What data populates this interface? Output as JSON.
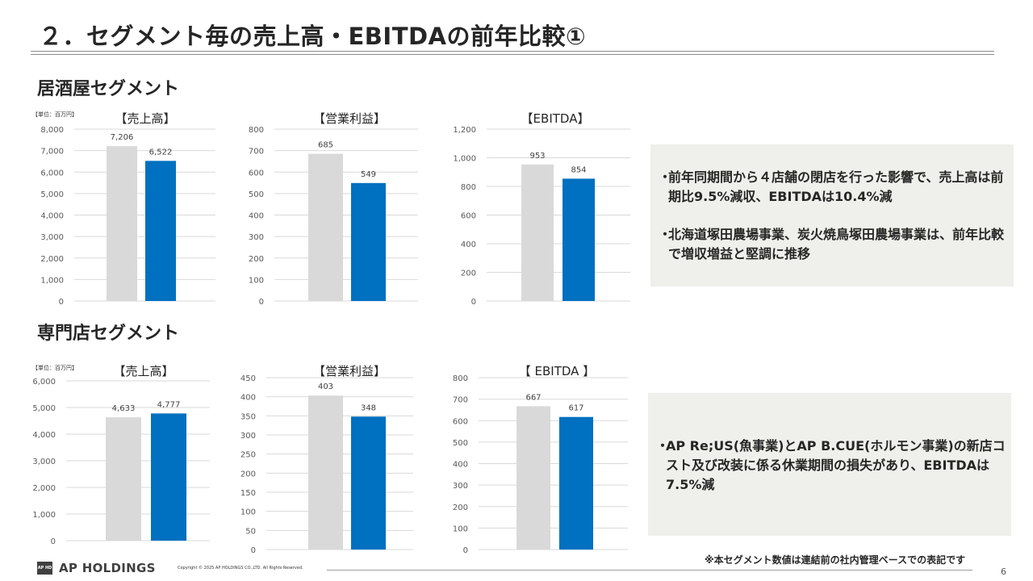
{
  "page": {
    "title": "２．セグメント毎の売上高・EBITDAの前年比較①",
    "page_number": "6",
    "footnote": "※本セグメント数値は連結前の社内管理ベースでの表記です"
  },
  "footer": {
    "logo_mark": "AP HD",
    "logo_text": "AP HOLDINGS",
    "copyright": "Copyright © 2025 AP HOLDINGS CO.,LTD.  All Rights Reserved."
  },
  "colors": {
    "prev_bar": "#d9d9d9",
    "curr_bar": "#0070c0",
    "gridline": "#d9d9d9",
    "note_bg": "#efefeb"
  },
  "segments": [
    {
      "heading": "居酒屋セグメント",
      "unit": "【単位：百万円】",
      "notes": [
        "前年同期間から４店舗の閉店を行った影響で、売上高は前期比9.5%減収、EBITDAは10.4%減",
        "北海道塚田農場事業、炭火焼鳥塚田農場事業は、前年比較で増収増益と堅調に推移"
      ]
    },
    {
      "heading": "専門店セグメント",
      "unit": "【単位：百万円】",
      "notes": [
        "AP Re;US(魚事業)とAP B.CUE(ホルモン事業)の新店コスト及び改装に係る休業期間の損失があり、EBITDAは7.5%減"
      ]
    }
  ],
  "bullet": "・",
  "chart_data": [
    {
      "type": "bar",
      "title": "【売上高】",
      "values": [
        7206,
        6522
      ],
      "data_labels": [
        "7,206",
        "6,522"
      ],
      "ylim": [
        0,
        8000
      ],
      "ticks": [
        "0",
        "1,000",
        "2,000",
        "3,000",
        "4,000",
        "5,000",
        "6,000",
        "7,000",
        "8,000"
      ],
      "grid": true
    },
    {
      "type": "bar",
      "title": "【営業利益】",
      "values": [
        685,
        549
      ],
      "data_labels": [
        "685",
        "549"
      ],
      "ylim": [
        0,
        800
      ],
      "ticks": [
        "0",
        "100",
        "200",
        "300",
        "400",
        "500",
        "600",
        "700",
        "800"
      ],
      "grid": true
    },
    {
      "type": "bar",
      "title": "【EBITDA】",
      "values": [
        953,
        854
      ],
      "data_labels": [
        "953",
        "854"
      ],
      "ylim": [
        0,
        1200
      ],
      "ticks": [
        "0",
        "200",
        "400",
        "600",
        "800",
        "1,000",
        "1,200"
      ],
      "grid": true
    },
    {
      "type": "bar",
      "title": "【売上高】",
      "values": [
        4633,
        4777
      ],
      "data_labels": [
        "4,633",
        "4,777"
      ],
      "ylim": [
        0,
        6000
      ],
      "ticks": [
        "0",
        "1,000",
        "2,000",
        "3,000",
        "4,000",
        "5,000",
        "6,000"
      ],
      "grid": true
    },
    {
      "type": "bar",
      "title": "【営業利益】",
      "values": [
        403,
        348
      ],
      "data_labels": [
        "403",
        "348"
      ],
      "ylim": [
        0,
        450
      ],
      "ticks": [
        "0",
        "50",
        "100",
        "150",
        "200",
        "250",
        "300",
        "350",
        "400",
        "450"
      ],
      "grid": true
    },
    {
      "type": "bar",
      "title": "【 EBITDA 】",
      "values": [
        667,
        617
      ],
      "data_labels": [
        "667",
        "617"
      ],
      "ylim": [
        0,
        800
      ],
      "ticks": [
        "0",
        "100",
        "200",
        "300",
        "400",
        "500",
        "600",
        "700",
        "800"
      ],
      "grid": true
    }
  ]
}
